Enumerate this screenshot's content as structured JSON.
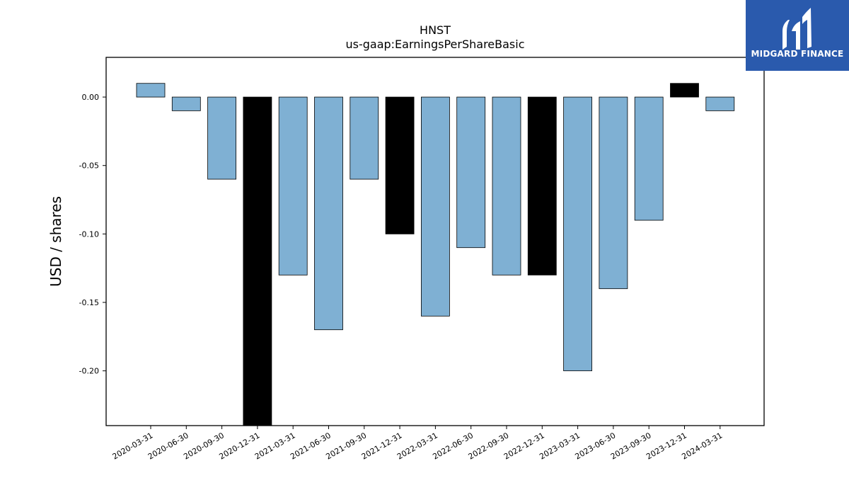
{
  "chart_data": {
    "type": "bar",
    "title": "HNST",
    "subtitle": "us-gaap:EarningsPerShareBasic",
    "xlabel": "",
    "ylabel": "USD / shares",
    "ylim": [
      -0.24,
      0.029
    ],
    "yticks": [
      "0.00",
      "-0.05",
      "-0.10",
      "-0.15",
      "-0.20"
    ],
    "ytick_values": [
      0.0,
      -0.05,
      -0.1,
      -0.15,
      -0.2
    ],
    "grid": false,
    "categories": [
      "2020-03-31",
      "2020-06-30",
      "2020-09-30",
      "2020-12-31",
      "2021-03-31",
      "2021-06-30",
      "2021-09-30",
      "2021-12-31",
      "2022-03-31",
      "2022-06-30",
      "2022-09-30",
      "2022-12-31",
      "2023-03-31",
      "2023-06-30",
      "2023-09-30",
      "2023-12-31",
      "2024-03-31"
    ],
    "values": [
      0.01,
      -0.01,
      -0.06,
      -0.24,
      -0.13,
      -0.17,
      -0.06,
      -0.1,
      -0.16,
      -0.11,
      -0.13,
      -0.13,
      -0.2,
      -0.14,
      -0.09,
      0.01,
      -0.01
    ],
    "bar_colors": [
      "#7fb0d3",
      "#7fb0d3",
      "#7fb0d3",
      "#000000",
      "#7fb0d3",
      "#7fb0d3",
      "#7fb0d3",
      "#000000",
      "#7fb0d3",
      "#7fb0d3",
      "#7fb0d3",
      "#000000",
      "#7fb0d3",
      "#7fb0d3",
      "#7fb0d3",
      "#000000",
      "#7fb0d3"
    ]
  },
  "logo": {
    "text": "MIDGARD FINANCE",
    "background": "#2a5aad"
  }
}
